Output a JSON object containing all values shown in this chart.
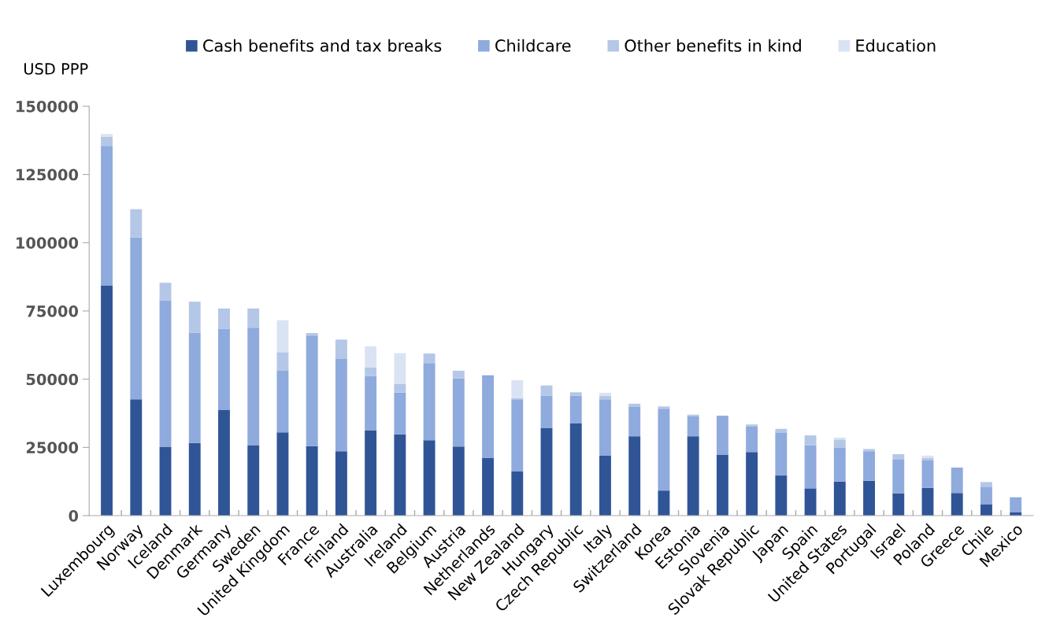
{
  "chart_data": {
    "type": "bar",
    "stacked": true,
    "ylabel": "USD PPP",
    "legend": "top",
    "grid": false,
    "categories": [
      "Luxembourg",
      "Norway",
      "Iceland",
      "Denmark",
      "Germany",
      "Sweden",
      "United Kingdom",
      "France",
      "Finland",
      "Australia",
      "Ireland",
      "Belgium",
      "Austria",
      "Netherlands",
      "New Zealand",
      "Hungary",
      "Czech Republic",
      "Italy",
      "Switzerland",
      "Korea",
      "Estonia",
      "Slovenia",
      "Slovak Republic",
      "Japan",
      "Spain",
      "United States",
      "Portugal",
      "Israel",
      "Poland",
      "Greece",
      "Chile",
      "Mexico"
    ],
    "ylim": [
      0,
      150000
    ],
    "yticks": [
      0,
      25000,
      50000,
      75000,
      100000,
      125000,
      150000
    ],
    "series": [
      {
        "name": "Cash benefits and tax breaks",
        "color": "#2f5597",
        "values": [
          84400,
          42600,
          25100,
          26600,
          38800,
          25800,
          30500,
          25500,
          23600,
          31300,
          29800,
          27600,
          25300,
          21100,
          16200,
          32200,
          33900,
          22100,
          29100,
          9200,
          29100,
          22400,
          23300,
          14700,
          10000,
          12500,
          12800,
          8200,
          10200,
          8300,
          4200,
          1200
        ]
      },
      {
        "name": "Childcare",
        "color": "#8faadc",
        "values": [
          51100,
          59400,
          53800,
          40500,
          29700,
          43100,
          22700,
          40500,
          33800,
          19800,
          15300,
          28300,
          25000,
          30300,
          26400,
          11800,
          10100,
          20500,
          10900,
          30000,
          7300,
          14200,
          9300,
          15800,
          15800,
          12500,
          10800,
          12500,
          10200,
          9300,
          6400,
          5500
        ]
      },
      {
        "name": "Other benefits in kind",
        "color": "#b4c7e7",
        "values": [
          3400,
          10300,
          6400,
          11300,
          7400,
          7000,
          6700,
          900,
          7100,
          3200,
          3200,
          3500,
          2800,
          0,
          500,
          3700,
          1200,
          1400,
          1000,
          800,
          600,
          0,
          800,
          1300,
          3600,
          2900,
          800,
          1800,
          800,
          0,
          1700,
          null
        ]
      },
      {
        "name": "Education",
        "color": "#dae3f3",
        "values": [
          900,
          0,
          0,
          null,
          null,
          0,
          11700,
          0,
          0,
          7700,
          11200,
          0,
          0,
          0,
          6500,
          0,
          0,
          1000,
          0,
          0,
          0,
          0,
          0,
          0,
          0,
          700,
          0,
          0,
          800,
          0,
          0,
          null
        ]
      }
    ]
  }
}
